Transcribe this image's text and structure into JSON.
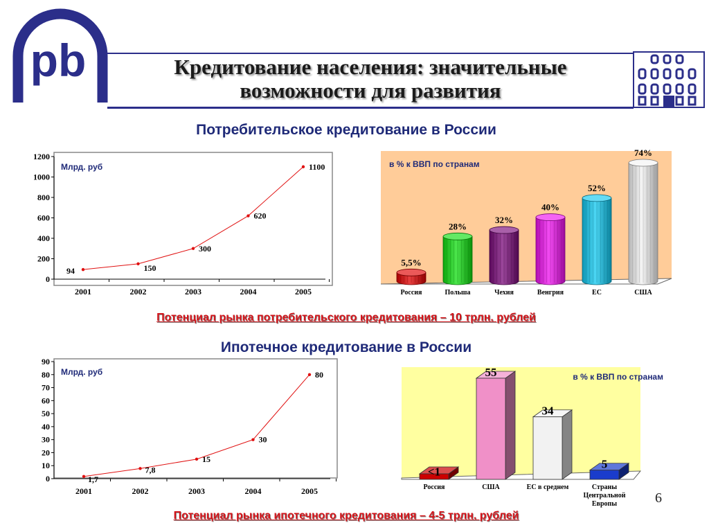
{
  "header": {
    "title_line1": "Кредитование населения: значительные",
    "title_line2": "возможности для развития",
    "logo_text": "pb",
    "logo_icon": "bank-logo-icon",
    "building_icon": "building-icon"
  },
  "consumer": {
    "title": "Потребительское кредитование в России",
    "potential": "Потенциал рынка потребительского кредитования – 10 трлн. рублей"
  },
  "mortgage": {
    "title": "Ипотечное кредитование в России",
    "potential": "Потенциал рынка ипотечного кредитования – 4-5 трлн. рублей"
  },
  "page_number": "6",
  "chart_data": [
    {
      "id": "consumer-volume",
      "type": "line",
      "unit_label": "Млрд. руб",
      "x": [
        "2001",
        "2002",
        "2003",
        "2004",
        "2005"
      ],
      "y": [
        94,
        150,
        300,
        620,
        1100
      ],
      "point_labels": [
        "94",
        "150",
        "300",
        "620",
        "1100"
      ],
      "ylim": [
        0,
        1200
      ],
      "yticks": [
        "0",
        "200",
        "400",
        "600",
        "800",
        "1000",
        "1200"
      ],
      "color": "#e01010"
    },
    {
      "id": "consumer-gdp",
      "type": "bar",
      "unit_label": "в %  к ВВП по странам",
      "categories": [
        "Россия",
        "Польша",
        "Чехия",
        "Венгрия",
        "ЕС",
        "США"
      ],
      "values": [
        5.5,
        28,
        32,
        40,
        52,
        74
      ],
      "value_labels": [
        "5,5%",
        "28%",
        "32%",
        "40%",
        "52%",
        "74%"
      ],
      "colors": [
        "#e00000",
        "#10dd10",
        "#7a0a7a",
        "#ee10ee",
        "#10c8f0",
        "#f2f2f2"
      ],
      "ylim": [
        0,
        74
      ],
      "background": "#ffcc99"
    },
    {
      "id": "mortgage-volume",
      "type": "line",
      "unit_label": "Млрд. руб",
      "x": [
        "2001",
        "2002",
        "2003",
        "2004",
        "2005"
      ],
      "y": [
        1.7,
        7.8,
        15,
        30,
        80
      ],
      "point_labels": [
        "1,7",
        "7,8",
        "15",
        "30",
        "80"
      ],
      "ylim": [
        0,
        90
      ],
      "yticks": [
        "0",
        "10",
        "20",
        "30",
        "40",
        "50",
        "60",
        "70",
        "80",
        "90"
      ],
      "color": "#e01010"
    },
    {
      "id": "mortgage-gdp",
      "type": "bar",
      "unit_label": "в % к ВВП по странам",
      "categories": [
        "Россия",
        "США",
        "ЕС  в среднем",
        "Страны Центральной Европы"
      ],
      "values": [
        1,
        55,
        34,
        5
      ],
      "value_labels": [
        "<1",
        "55",
        "34",
        "5"
      ],
      "colors": [
        "#cc0000",
        "#f090c8",
        "#f2f2f2",
        "#1a3ccc"
      ],
      "ylim": [
        0,
        55
      ],
      "background": "#ffffa0"
    }
  ]
}
